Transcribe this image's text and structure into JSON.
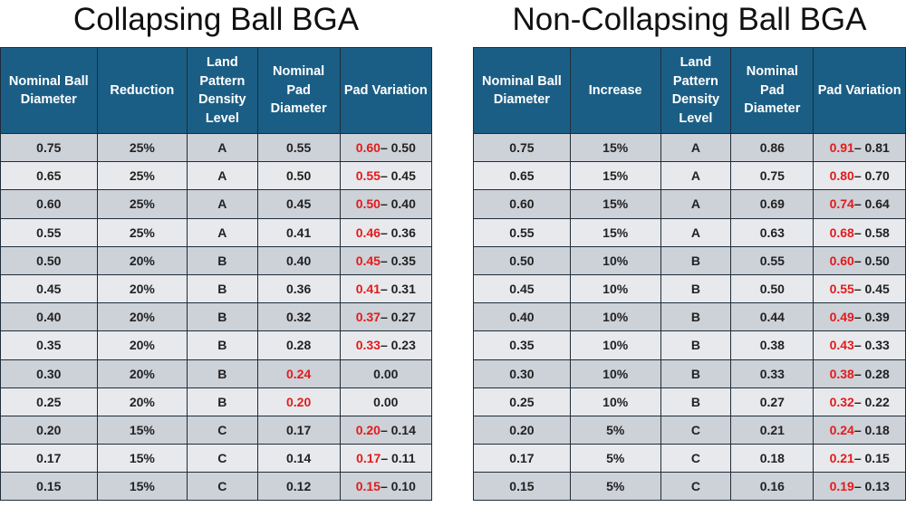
{
  "left": {
    "title": "Collapsing Ball BGA",
    "headers": [
      "Nominal Ball Diameter",
      "Reduction",
      "Land Pattern Density Level",
      "Nominal Pad Diameter",
      "Pad Variation"
    ],
    "rows": [
      [
        "0.75",
        "25%",
        "A",
        "0.55",
        "0.60",
        "– 0.50"
      ],
      [
        "0.65",
        "25%",
        "A",
        "0.50",
        "0.55",
        "– 0.45"
      ],
      [
        "0.60",
        "25%",
        "A",
        "0.45",
        "0.50",
        "– 0.40"
      ],
      [
        "0.55",
        "25%",
        "A",
        "0.41",
        "0.46",
        "– 0.36"
      ],
      [
        "0.50",
        "20%",
        "B",
        "0.40",
        "0.45",
        "– 0.35"
      ],
      [
        "0.45",
        "20%",
        "B",
        "0.36",
        "0.41",
        "– 0.31"
      ],
      [
        "0.40",
        "20%",
        "B",
        "0.32",
        "0.37",
        "– 0.27"
      ],
      [
        "0.35",
        "20%",
        "B",
        "0.28",
        "0.33",
        "– 0.23"
      ],
      [
        "0.30",
        "20%",
        "B",
        "0.24",
        "",
        "0.00"
      ],
      [
        "0.25",
        "20%",
        "B",
        "0.20",
        "",
        "0.00"
      ],
      [
        "0.20",
        "15%",
        "C",
        "0.17",
        "0.20",
        "– 0.14"
      ],
      [
        "0.17",
        "15%",
        "C",
        "0.14",
        "0.17",
        "– 0.11"
      ],
      [
        "0.15",
        "15%",
        "C",
        "0.12",
        "0.15",
        "– 0.10"
      ]
    ],
    "red_pad_rows": [
      8,
      9
    ]
  },
  "right": {
    "title": "Non-Collapsing Ball BGA",
    "headers": [
      "Nominal Ball Diameter",
      "Increase",
      "Land Pattern Density Level",
      "Nominal Pad Diameter",
      "Pad Variation"
    ],
    "rows": [
      [
        "0.75",
        "15%",
        "A",
        "0.86",
        "0.91",
        "– 0.81"
      ],
      [
        "0.65",
        "15%",
        "A",
        "0.75",
        "0.80",
        "– 0.70"
      ],
      [
        "0.60",
        "15%",
        "A",
        "0.69",
        "0.74",
        "– 0.64"
      ],
      [
        "0.55",
        "15%",
        "A",
        "0.63",
        "0.68",
        "– 0.58"
      ],
      [
        "0.50",
        "10%",
        "B",
        "0.55",
        "0.60",
        "– 0.50"
      ],
      [
        "0.45",
        "10%",
        "B",
        "0.50",
        "0.55",
        "– 0.45"
      ],
      [
        "0.40",
        "10%",
        "B",
        "0.44",
        "0.49",
        "– 0.39"
      ],
      [
        "0.35",
        "10%",
        "B",
        "0.38",
        "0.43",
        "– 0.33"
      ],
      [
        "0.30",
        "10%",
        "B",
        "0.33",
        "0.38",
        "– 0.28"
      ],
      [
        "0.25",
        "10%",
        "B",
        "0.27",
        "0.32",
        "– 0.22"
      ],
      [
        "0.20",
        "5%",
        "C",
        "0.21",
        "0.24",
        "– 0.18"
      ],
      [
        "0.17",
        "5%",
        "C",
        "0.18",
        "0.21",
        "– 0.15"
      ],
      [
        "0.15",
        "5%",
        "C",
        "0.16",
        "0.19",
        "– 0.13"
      ]
    ],
    "red_pad_rows": []
  },
  "colors": {
    "header_bg": "#1b5e85",
    "row_dark": "#cdd1d8",
    "row_light": "#e7e9ed",
    "highlight_red": "#e31b1b"
  }
}
